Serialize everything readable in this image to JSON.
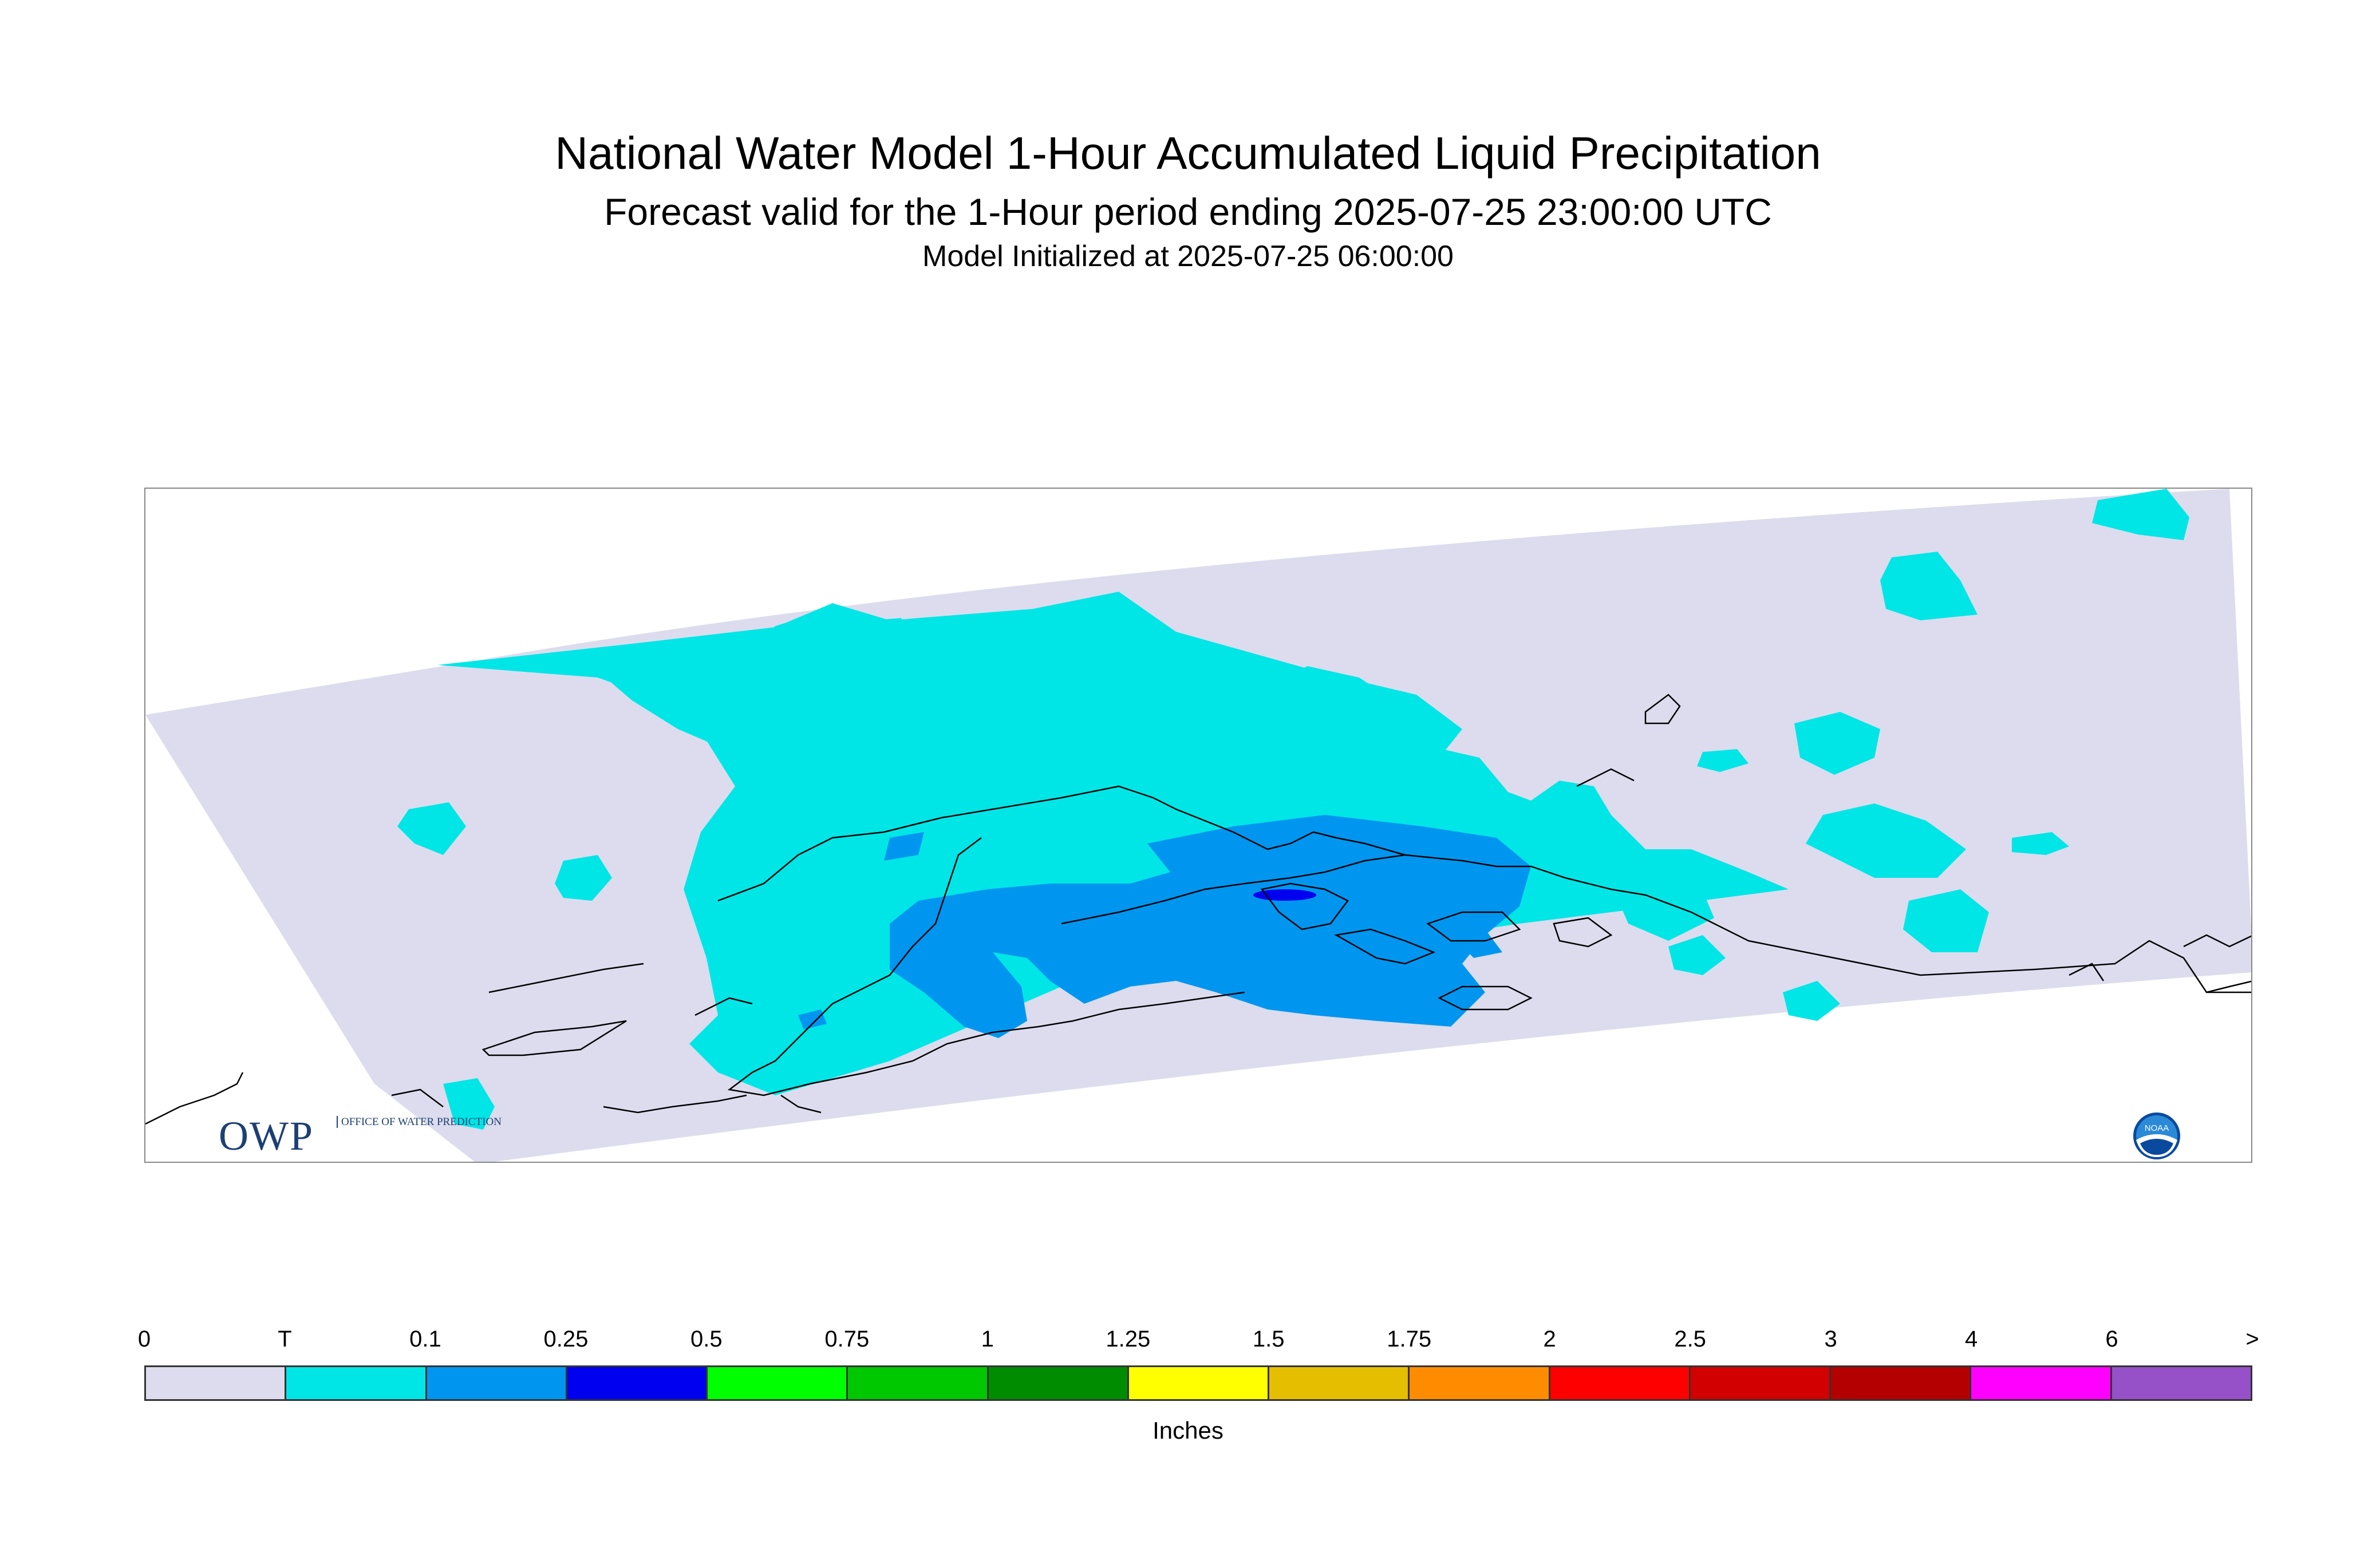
{
  "title": "National Water Model 1-Hour Accumulated Liquid Precipitation",
  "subtitle": "Forecast valid for the 1-Hour period ending 2025-07-25 23:00:00 UTC",
  "init_line": "Model Initialized at 2025-07-25 06:00:00",
  "logo": {
    "owp_text": "OWP",
    "owp_subtext": "OFFICE OF WATER PREDICTION",
    "noaa_text": "NOAA"
  },
  "legend": {
    "units": "Inches",
    "labels": [
      "0",
      "T",
      "0.1",
      "0.25",
      "0.5",
      "0.75",
      "1",
      "1.25",
      "1.5",
      "1.75",
      "2",
      "2.5",
      "3",
      "4",
      "6",
      ">"
    ],
    "colors": [
      "#dcdcee",
      "#00e6e6",
      "#0096f0",
      "#0000f0",
      "#00ff00",
      "#00c800",
      "#008c00",
      "#ffff00",
      "#e6be00",
      "#ff8c00",
      "#ff0000",
      "#d20000",
      "#b40000",
      "#ff00ff",
      "#9650c8"
    ]
  }
}
